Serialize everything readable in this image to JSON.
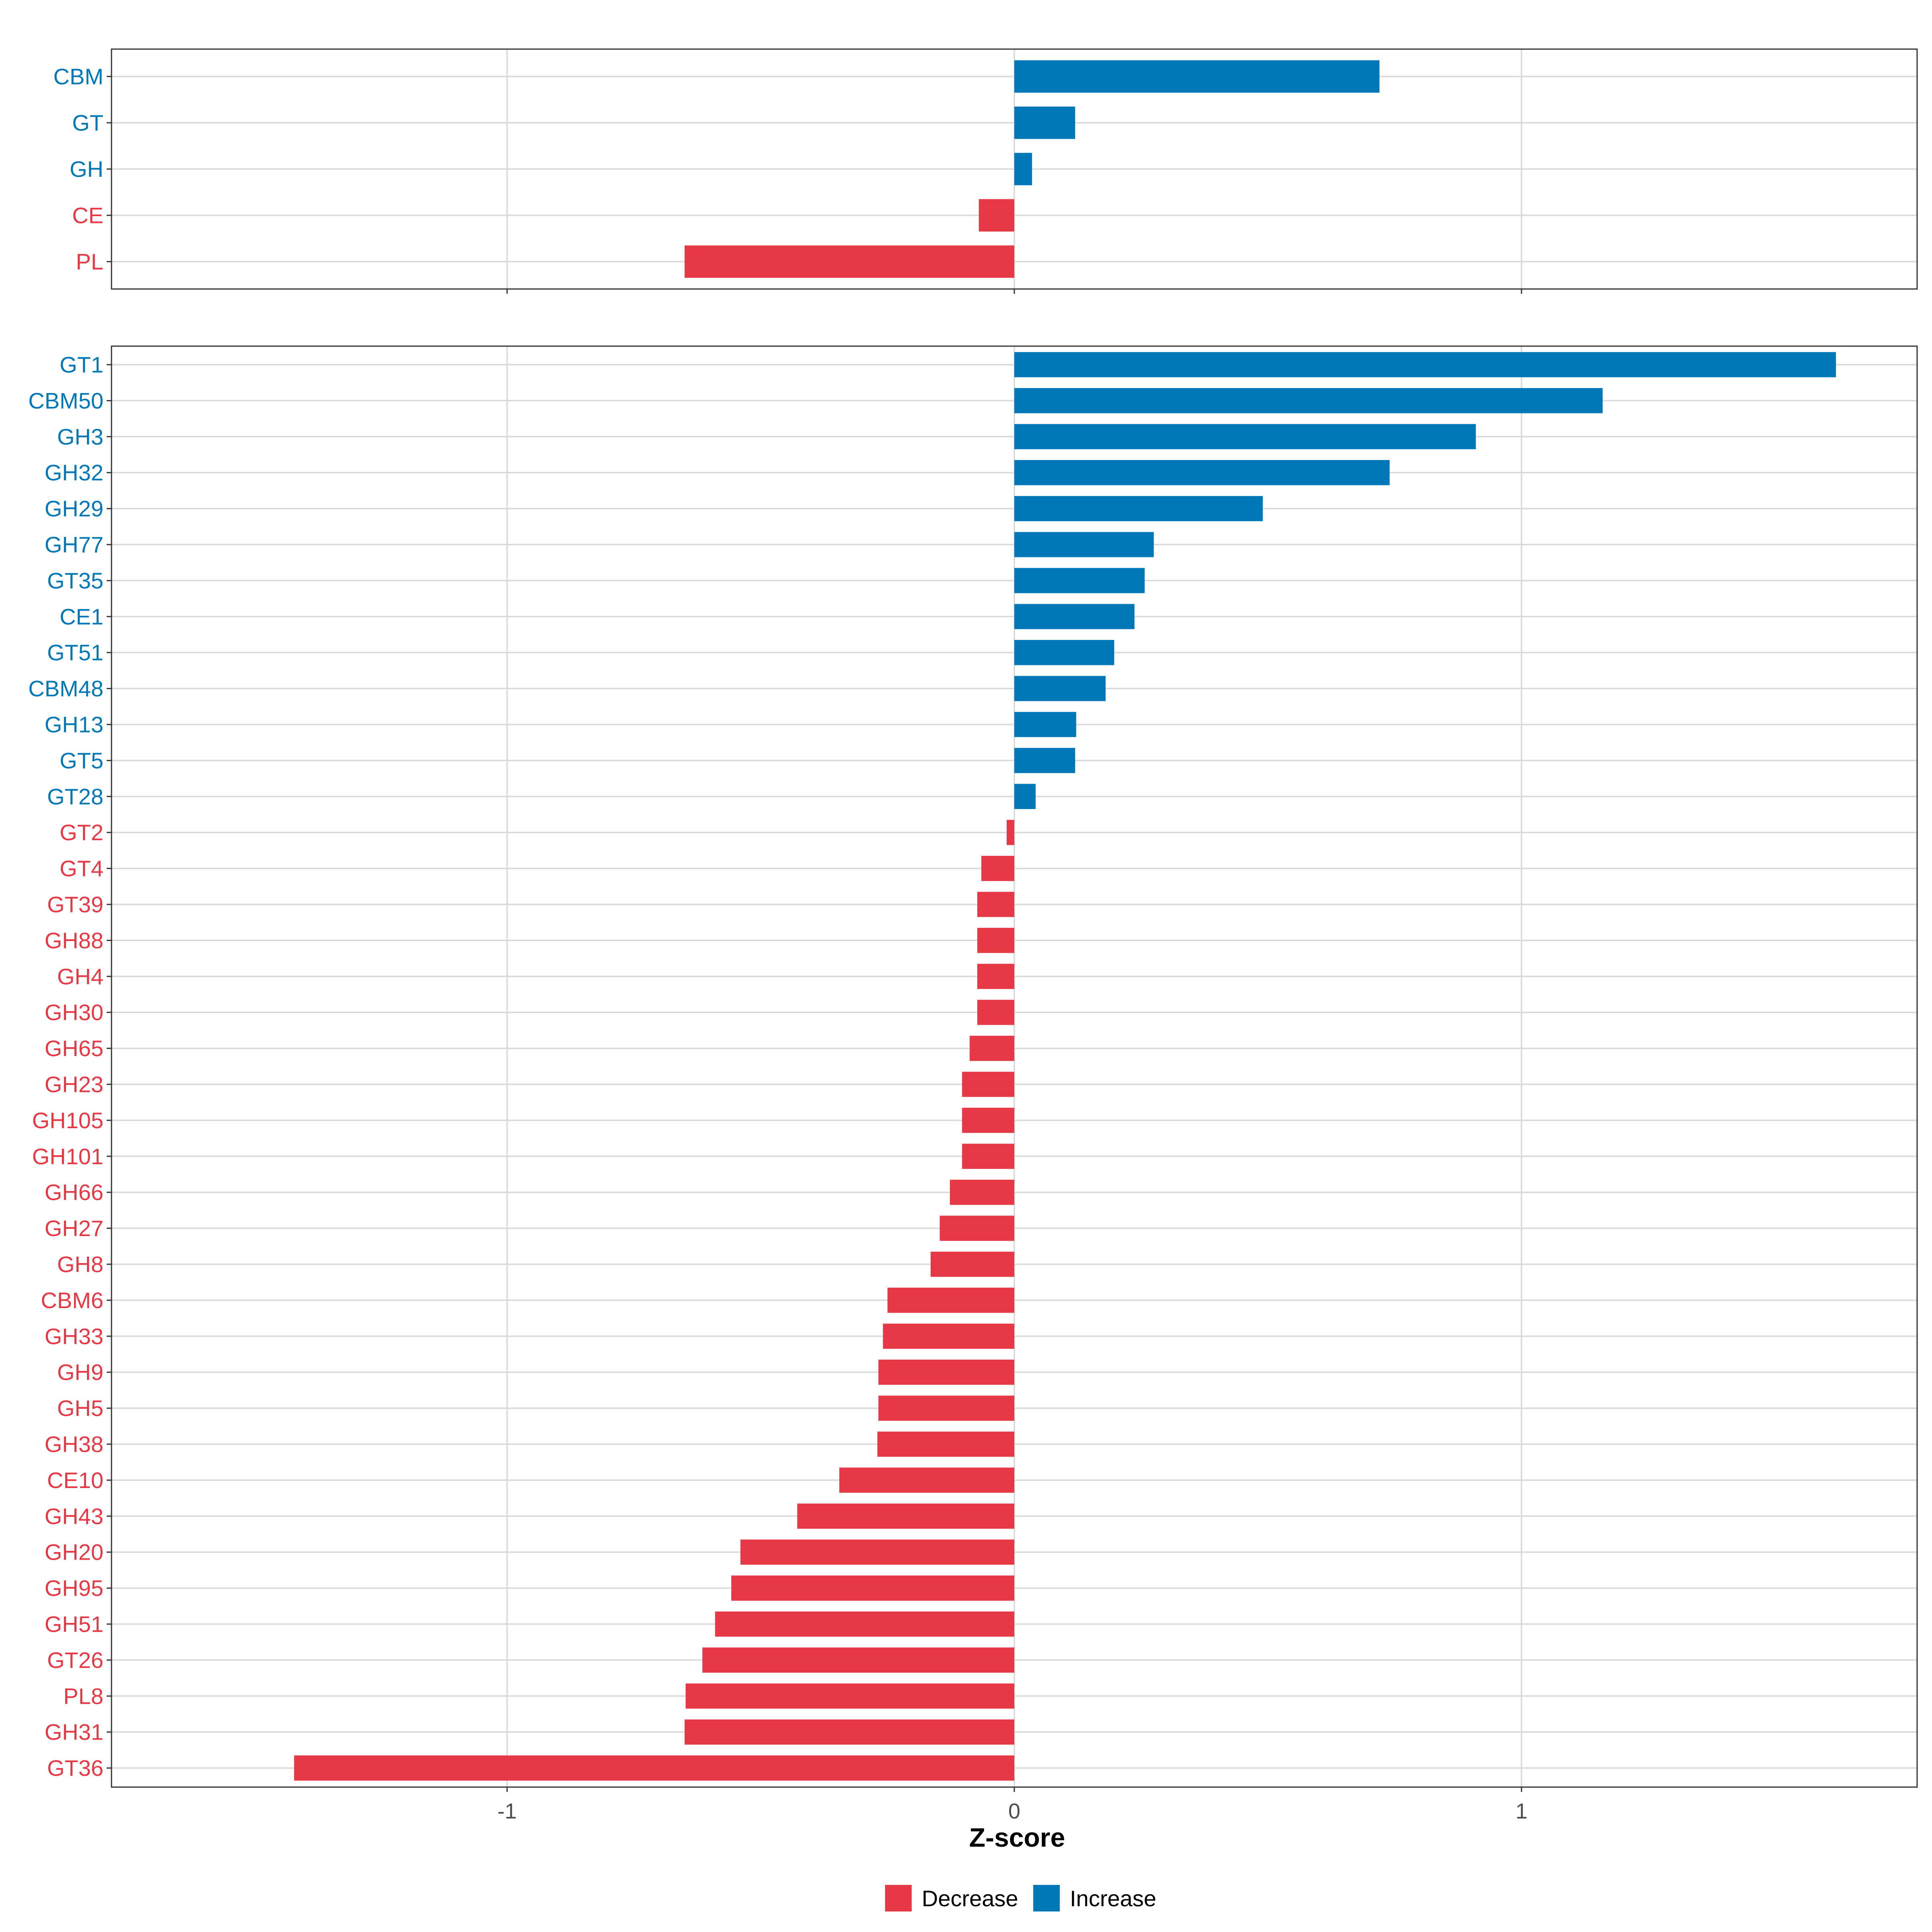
{
  "chart_data": [
    {
      "type": "bar",
      "orientation": "horizontal",
      "panel": "top",
      "categories": [
        "CBM",
        "GT",
        "GH",
        "CE",
        "PL"
      ],
      "values": [
        0.72,
        0.12,
        0.035,
        -0.07,
        -0.65
      ],
      "directions": [
        "Increase",
        "Increase",
        "Increase",
        "Decrease",
        "Decrease"
      ],
      "xlim": [
        -1.78,
        1.78
      ],
      "xticks": [
        -1,
        0,
        1
      ]
    },
    {
      "type": "bar",
      "orientation": "horizontal",
      "panel": "bottom",
      "categories": [
        "GT1",
        "CBM50",
        "GH3",
        "GH32",
        "GH29",
        "GH77",
        "GT35",
        "CE1",
        "GT51",
        "CBM48",
        "GH13",
        "GT5",
        "GT28",
        "GT2",
        "GT4",
        "GT39",
        "GH88",
        "GH4",
        "GH30",
        "GH65",
        "GH23",
        "GH105",
        "GH101",
        "GH66",
        "GH27",
        "GH8",
        "CBM6",
        "GH33",
        "GH9",
        "GH5",
        "GH38",
        "CE10",
        "GH43",
        "GH20",
        "GH95",
        "GH51",
        "GT26",
        "PL8",
        "GH31",
        "GT36"
      ],
      "values": [
        1.62,
        1.16,
        0.91,
        0.74,
        0.49,
        0.275,
        0.257,
        0.237,
        0.197,
        0.18,
        0.122,
        0.12,
        0.042,
        -0.015,
        -0.065,
        -0.073,
        -0.073,
        -0.073,
        -0.073,
        -0.088,
        -0.103,
        -0.103,
        -0.103,
        -0.127,
        -0.147,
        -0.165,
        -0.25,
        -0.259,
        -0.268,
        -0.268,
        -0.27,
        -0.345,
        -0.428,
        -0.54,
        -0.558,
        -0.59,
        -0.615,
        -0.648,
        -0.65,
        -1.42
      ],
      "directions": [
        "Increase",
        "Increase",
        "Increase",
        "Increase",
        "Increase",
        "Increase",
        "Increase",
        "Increase",
        "Increase",
        "Increase",
        "Increase",
        "Increase",
        "Increase",
        "Decrease",
        "Decrease",
        "Decrease",
        "Decrease",
        "Decrease",
        "Decrease",
        "Decrease",
        "Decrease",
        "Decrease",
        "Decrease",
        "Decrease",
        "Decrease",
        "Decrease",
        "Decrease",
        "Decrease",
        "Decrease",
        "Decrease",
        "Decrease",
        "Decrease",
        "Decrease",
        "Decrease",
        "Decrease",
        "Decrease",
        "Decrease",
        "Decrease",
        "Decrease",
        "Decrease"
      ],
      "xlim": [
        -1.78,
        1.78
      ],
      "xticks": [
        -1,
        0,
        1
      ],
      "xtick_labels": [
        "-1",
        "0",
        "1"
      ],
      "xlabel": "Z-score"
    }
  ],
  "legend": {
    "position": "bottom",
    "entries": [
      {
        "label": "Decrease",
        "color": "#E63946"
      },
      {
        "label": "Increase",
        "color": "#0077B6"
      }
    ]
  },
  "colors": {
    "Decrease": "#E63946",
    "Increase": "#0077B6"
  }
}
